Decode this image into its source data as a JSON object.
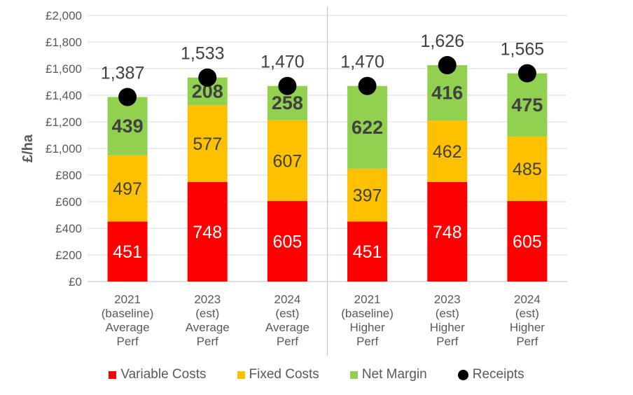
{
  "chart_data": {
    "type": "bar",
    "stacked": true,
    "ylabel": "£/ha",
    "ylim": [
      0,
      2000
    ],
    "yticks": [
      "£0",
      "£200",
      "£400",
      "£600",
      "£800",
      "£1,000",
      "£1,200",
      "£1,400",
      "£1,600",
      "£1,800",
      "£2,000"
    ],
    "grid": true,
    "legend_position": "bottom",
    "categories": [
      [
        "2021",
        "(baseline)",
        "Average",
        "Perf"
      ],
      [
        "2023",
        "(est)",
        "Average",
        "Perf"
      ],
      [
        "2024",
        "(est)",
        "Average",
        "Perf"
      ],
      [
        "2021",
        "(baseline)",
        "Higher",
        "Perf"
      ],
      [
        "2023",
        "(est)",
        "Higher",
        "Perf"
      ],
      [
        "2024",
        "(est)",
        "Higher",
        "Perf"
      ]
    ],
    "series": [
      {
        "name": "Variable Costs",
        "color": "#ff0000",
        "values": [
          451,
          748,
          605,
          451,
          748,
          605
        ],
        "labels": [
          "451",
          "748",
          "605",
          "451",
          "748",
          "605"
        ]
      },
      {
        "name": "Fixed Costs",
        "color": "#ffc000",
        "values": [
          497,
          577,
          607,
          397,
          462,
          485
        ],
        "labels": [
          "497",
          "577",
          "607",
          "397",
          "462",
          "485"
        ]
      },
      {
        "name": "Net Margin",
        "color": "#92d050",
        "values": [
          439,
          208,
          258,
          622,
          416,
          475
        ],
        "labels": [
          "439",
          "208",
          "258",
          "622",
          "416",
          "475"
        ]
      }
    ],
    "receipts": {
      "name": "Receipts",
      "color": "#000000",
      "values": [
        1387,
        1533,
        1470,
        1470,
        1626,
        1565
      ],
      "labels": [
        "1,387",
        "1,533",
        "1,470",
        "1,470",
        "1,626",
        "1,565"
      ]
    },
    "group_divider_after_index": 2
  }
}
